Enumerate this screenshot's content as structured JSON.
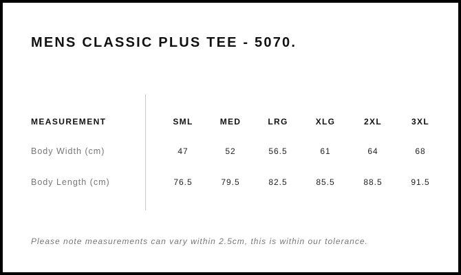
{
  "title": "MENS CLASSIC PLUS TEE - 5070.",
  "table": {
    "header_label": "MEASUREMENT",
    "sizes": [
      "SML",
      "MED",
      "LRG",
      "XLG",
      "2XL",
      "3XL"
    ],
    "rows": [
      {
        "label": "Body Width (cm)",
        "values": [
          "47",
          "52",
          "56.5",
          "61",
          "64",
          "68"
        ]
      },
      {
        "label": "Body Length (cm)",
        "values": [
          "76.5",
          "79.5",
          "82.5",
          "85.5",
          "88.5",
          "91.5"
        ]
      }
    ]
  },
  "note": "Please note measurements can vary within 2.5cm, this is within our tolerance."
}
